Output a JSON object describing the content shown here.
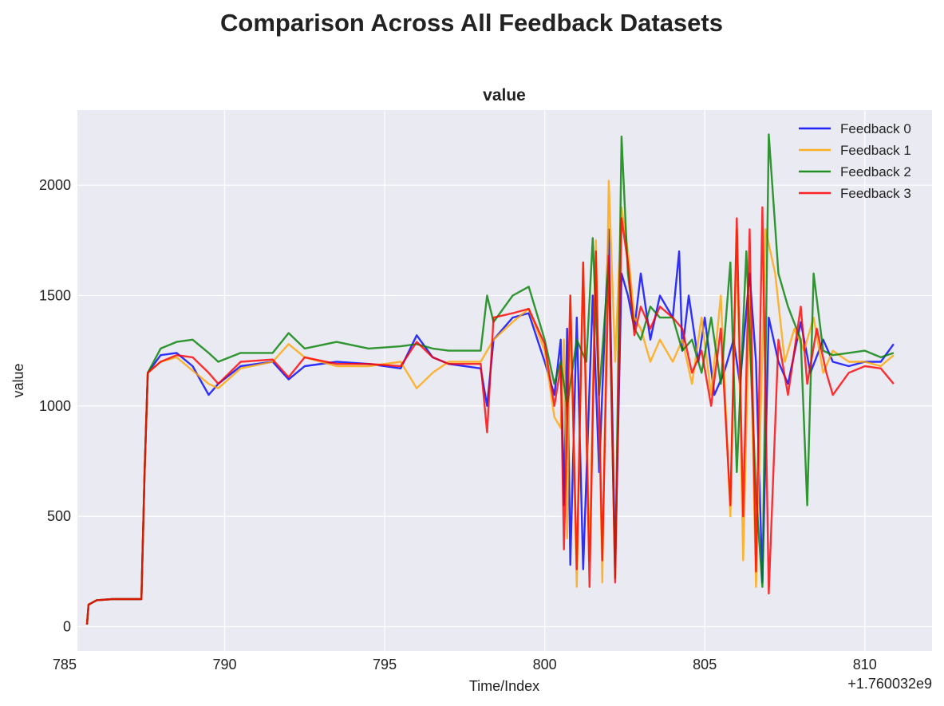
{
  "figure": {
    "suptitle": "Comparison Across All Feedback Datasets"
  },
  "chart_data": {
    "type": "line",
    "title": "value",
    "xlabel": "Time/Index",
    "ylabel": "value",
    "x_offset_label": "+1.760032e9",
    "xlim": [
      785.4,
      812.1
    ],
    "ylim": [
      -110,
      2340
    ],
    "xticks": [
      785,
      790,
      795,
      800,
      805,
      810
    ],
    "yticks": [
      0,
      500,
      1000,
      1500,
      2000
    ],
    "grid": true,
    "legend_position": "top-right",
    "series": [
      {
        "name": "Feedback 0",
        "color": "#0000ff",
        "points": [
          [
            785.7,
            10
          ],
          [
            785.75,
            100
          ],
          [
            786.0,
            120
          ],
          [
            786.5,
            125
          ],
          [
            787.0,
            125
          ],
          [
            787.4,
            125
          ],
          [
            787.5,
            700
          ],
          [
            787.6,
            1150
          ],
          [
            788.0,
            1230
          ],
          [
            788.5,
            1240
          ],
          [
            789.0,
            1180
          ],
          [
            789.5,
            1050
          ],
          [
            789.8,
            1100
          ],
          [
            790.5,
            1180
          ],
          [
            791.5,
            1200
          ],
          [
            792.0,
            1120
          ],
          [
            792.5,
            1180
          ],
          [
            793.5,
            1200
          ],
          [
            794.5,
            1190
          ],
          [
            795.5,
            1170
          ],
          [
            796.0,
            1320
          ],
          [
            796.5,
            1220
          ],
          [
            797.0,
            1190
          ],
          [
            798.0,
            1170
          ],
          [
            798.2,
            1000
          ],
          [
            798.4,
            1300
          ],
          [
            799.0,
            1400
          ],
          [
            799.5,
            1420
          ],
          [
            800.0,
            1200
          ],
          [
            800.3,
            1050
          ],
          [
            800.5,
            1300
          ],
          [
            800.6,
            550
          ],
          [
            800.7,
            1350
          ],
          [
            800.8,
            280
          ],
          [
            801.0,
            1400
          ],
          [
            801.2,
            260
          ],
          [
            801.5,
            1500
          ],
          [
            801.7,
            700
          ],
          [
            802.0,
            1800
          ],
          [
            802.2,
            280
          ],
          [
            802.4,
            1600
          ],
          [
            802.6,
            1500
          ],
          [
            802.8,
            1350
          ],
          [
            803.0,
            1600
          ],
          [
            803.3,
            1300
          ],
          [
            803.6,
            1500
          ],
          [
            804.0,
            1400
          ],
          [
            804.2,
            1700
          ],
          [
            804.3,
            1250
          ],
          [
            804.5,
            1500
          ],
          [
            804.8,
            1200
          ],
          [
            805.0,
            1400
          ],
          [
            805.3,
            1050
          ],
          [
            805.6,
            1150
          ],
          [
            805.9,
            1300
          ],
          [
            806.1,
            1100
          ],
          [
            806.4,
            1600
          ],
          [
            806.6,
            1200
          ],
          [
            806.8,
            200
          ],
          [
            807.0,
            1400
          ],
          [
            807.3,
            1200
          ],
          [
            807.6,
            1100
          ],
          [
            808.0,
            1380
          ],
          [
            808.3,
            1150
          ],
          [
            808.7,
            1300
          ],
          [
            809.0,
            1200
          ],
          [
            809.5,
            1180
          ],
          [
            810.0,
            1200
          ],
          [
            810.5,
            1200
          ],
          [
            810.9,
            1280
          ]
        ]
      },
      {
        "name": "Feedback 1",
        "color": "#ffa500",
        "points": [
          [
            785.7,
            10
          ],
          [
            785.75,
            100
          ],
          [
            786.0,
            120
          ],
          [
            786.5,
            125
          ],
          [
            787.0,
            125
          ],
          [
            787.4,
            125
          ],
          [
            787.5,
            700
          ],
          [
            787.6,
            1150
          ],
          [
            788.0,
            1200
          ],
          [
            788.5,
            1220
          ],
          [
            789.0,
            1160
          ],
          [
            789.5,
            1100
          ],
          [
            789.8,
            1080
          ],
          [
            790.5,
            1170
          ],
          [
            791.5,
            1200
          ],
          [
            792.0,
            1280
          ],
          [
            792.5,
            1220
          ],
          [
            793.5,
            1180
          ],
          [
            794.5,
            1180
          ],
          [
            795.5,
            1200
          ],
          [
            796.0,
            1080
          ],
          [
            796.5,
            1150
          ],
          [
            797.0,
            1200
          ],
          [
            798.0,
            1200
          ],
          [
            798.2,
            1250
          ],
          [
            798.4,
            1300
          ],
          [
            799.0,
            1380
          ],
          [
            799.5,
            1440
          ],
          [
            800.0,
            1250
          ],
          [
            800.3,
            950
          ],
          [
            800.5,
            900
          ],
          [
            800.6,
            1300
          ],
          [
            800.7,
            400
          ],
          [
            800.8,
            1500
          ],
          [
            801.0,
            180
          ],
          [
            801.2,
            1650
          ],
          [
            801.4,
            300
          ],
          [
            801.6,
            1750
          ],
          [
            801.8,
            200
          ],
          [
            802.0,
            2020
          ],
          [
            802.2,
            1200
          ],
          [
            802.4,
            1900
          ],
          [
            802.6,
            1700
          ],
          [
            802.8,
            1400
          ],
          [
            803.0,
            1350
          ],
          [
            803.3,
            1200
          ],
          [
            803.6,
            1300
          ],
          [
            804.0,
            1200
          ],
          [
            804.3,
            1300
          ],
          [
            804.6,
            1100
          ],
          [
            804.9,
            1400
          ],
          [
            805.2,
            1050
          ],
          [
            805.5,
            1500
          ],
          [
            805.8,
            500
          ],
          [
            806.0,
            1800
          ],
          [
            806.2,
            300
          ],
          [
            806.4,
            1500
          ],
          [
            806.6,
            180
          ],
          [
            806.9,
            1800
          ],
          [
            807.2,
            1600
          ],
          [
            807.5,
            1200
          ],
          [
            807.8,
            1350
          ],
          [
            808.1,
            1250
          ],
          [
            808.4,
            1400
          ],
          [
            808.7,
            1150
          ],
          [
            809.0,
            1250
          ],
          [
            809.5,
            1200
          ],
          [
            810.0,
            1200
          ],
          [
            810.5,
            1180
          ],
          [
            810.9,
            1230
          ]
        ]
      },
      {
        "name": "Feedback 2",
        "color": "#008000",
        "points": [
          [
            785.7,
            10
          ],
          [
            785.75,
            100
          ],
          [
            786.0,
            120
          ],
          [
            786.5,
            125
          ],
          [
            787.0,
            125
          ],
          [
            787.4,
            125
          ],
          [
            787.5,
            700
          ],
          [
            787.6,
            1150
          ],
          [
            788.0,
            1260
          ],
          [
            788.5,
            1290
          ],
          [
            789.0,
            1300
          ],
          [
            789.5,
            1240
          ],
          [
            789.8,
            1200
          ],
          [
            790.5,
            1240
          ],
          [
            791.5,
            1240
          ],
          [
            792.0,
            1330
          ],
          [
            792.5,
            1260
          ],
          [
            793.5,
            1290
          ],
          [
            794.5,
            1260
          ],
          [
            795.5,
            1270
          ],
          [
            796.0,
            1280
          ],
          [
            796.5,
            1260
          ],
          [
            797.0,
            1250
          ],
          [
            798.0,
            1250
          ],
          [
            798.2,
            1500
          ],
          [
            798.4,
            1380
          ],
          [
            799.0,
            1500
          ],
          [
            799.5,
            1540
          ],
          [
            800.0,
            1300
          ],
          [
            800.3,
            1100
          ],
          [
            800.5,
            1200
          ],
          [
            800.7,
            1000
          ],
          [
            801.0,
            1300
          ],
          [
            801.3,
            1200
          ],
          [
            801.5,
            1760
          ],
          [
            801.7,
            1050
          ],
          [
            802.0,
            1650
          ],
          [
            802.2,
            220
          ],
          [
            802.4,
            2220
          ],
          [
            802.6,
            1600
          ],
          [
            802.8,
            1350
          ],
          [
            803.0,
            1300
          ],
          [
            803.3,
            1450
          ],
          [
            803.6,
            1400
          ],
          [
            804.0,
            1400
          ],
          [
            804.3,
            1250
          ],
          [
            804.6,
            1300
          ],
          [
            804.9,
            1150
          ],
          [
            805.2,
            1400
          ],
          [
            805.5,
            1100
          ],
          [
            805.8,
            1650
          ],
          [
            806.0,
            700
          ],
          [
            806.3,
            1700
          ],
          [
            806.6,
            600
          ],
          [
            806.8,
            180
          ],
          [
            807.0,
            2230
          ],
          [
            807.3,
            1600
          ],
          [
            807.6,
            1450
          ],
          [
            808.0,
            1300
          ],
          [
            808.2,
            550
          ],
          [
            808.4,
            1600
          ],
          [
            808.7,
            1250
          ],
          [
            809.0,
            1230
          ],
          [
            809.5,
            1240
          ],
          [
            810.0,
            1250
          ],
          [
            810.5,
            1220
          ],
          [
            810.9,
            1240
          ]
        ]
      },
      {
        "name": "Feedback 3",
        "color": "#ff0000",
        "points": [
          [
            785.7,
            10
          ],
          [
            785.75,
            100
          ],
          [
            786.0,
            120
          ],
          [
            786.5,
            125
          ],
          [
            787.0,
            125
          ],
          [
            787.4,
            125
          ],
          [
            787.5,
            700
          ],
          [
            787.6,
            1150
          ],
          [
            788.0,
            1200
          ],
          [
            788.5,
            1230
          ],
          [
            789.0,
            1220
          ],
          [
            789.5,
            1150
          ],
          [
            789.8,
            1100
          ],
          [
            790.5,
            1200
          ],
          [
            791.5,
            1210
          ],
          [
            792.0,
            1130
          ],
          [
            792.5,
            1220
          ],
          [
            793.5,
            1190
          ],
          [
            794.5,
            1190
          ],
          [
            795.5,
            1180
          ],
          [
            796.0,
            1290
          ],
          [
            796.5,
            1220
          ],
          [
            797.0,
            1190
          ],
          [
            798.0,
            1190
          ],
          [
            798.2,
            880
          ],
          [
            798.4,
            1400
          ],
          [
            799.0,
            1420
          ],
          [
            799.5,
            1440
          ],
          [
            800.0,
            1280
          ],
          [
            800.3,
            1000
          ],
          [
            800.5,
            1180
          ],
          [
            800.6,
            350
          ],
          [
            800.8,
            1500
          ],
          [
            801.0,
            260
          ],
          [
            801.2,
            1650
          ],
          [
            801.4,
            180
          ],
          [
            801.6,
            1700
          ],
          [
            801.8,
            300
          ],
          [
            802.0,
            1680
          ],
          [
            802.2,
            200
          ],
          [
            802.4,
            1850
          ],
          [
            802.6,
            1650
          ],
          [
            802.8,
            1320
          ],
          [
            803.0,
            1450
          ],
          [
            803.3,
            1350
          ],
          [
            803.6,
            1450
          ],
          [
            804.0,
            1400
          ],
          [
            804.3,
            1350
          ],
          [
            804.6,
            1150
          ],
          [
            804.9,
            1250
          ],
          [
            805.2,
            1000
          ],
          [
            805.5,
            1350
          ],
          [
            805.8,
            550
          ],
          [
            806.0,
            1850
          ],
          [
            806.2,
            500
          ],
          [
            806.4,
            1800
          ],
          [
            806.6,
            250
          ],
          [
            806.8,
            1900
          ],
          [
            807.0,
            150
          ],
          [
            807.3,
            1300
          ],
          [
            807.6,
            1050
          ],
          [
            808.0,
            1450
          ],
          [
            808.2,
            1100
          ],
          [
            808.5,
            1350
          ],
          [
            808.8,
            1150
          ],
          [
            809.0,
            1050
          ],
          [
            809.5,
            1150
          ],
          [
            810.0,
            1180
          ],
          [
            810.5,
            1170
          ],
          [
            810.9,
            1100
          ]
        ]
      }
    ]
  }
}
